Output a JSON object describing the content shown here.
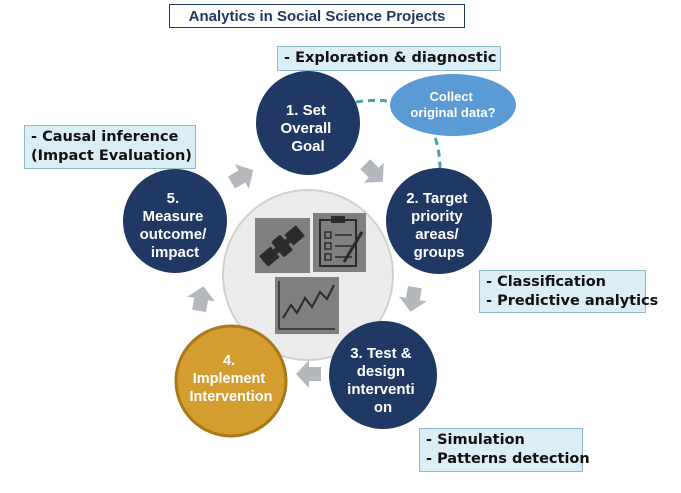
{
  "title": "Analytics in Social Science Projects",
  "steps": [
    {
      "lines": [
        "1. Set",
        "Overall",
        "Goal"
      ]
    },
    {
      "lines": [
        "2. Target",
        "priority",
        "areas/",
        "groups"
      ]
    },
    {
      "lines": [
        "3. Test &",
        "design",
        "interventi",
        "on"
      ]
    },
    {
      "lines": [
        "4.",
        "Implement",
        "Intervention"
      ]
    },
    {
      "lines": [
        "5.",
        "Measure",
        "outcome/",
        "impact"
      ]
    }
  ],
  "bubble": {
    "lines": [
      "Collect",
      "original data?"
    ]
  },
  "notes": {
    "exploration": [
      "- Exploration & diagnostic"
    ],
    "causal": [
      "- Causal inference",
      "(Impact Evaluation)"
    ],
    "classification": [
      "- Classification",
      "- Predictive analytics"
    ],
    "simulation": [
      "- Simulation",
      "- Patterns detection"
    ]
  },
  "colors": {
    "navy": "#1f3864",
    "gold": "#d39e2f",
    "bubble": "#5b9bd5",
    "arrow": "#b4b8bd",
    "note_fill": "#dbeef6",
    "dashed": "#4aa3a3"
  },
  "icons": [
    "satellite-icon",
    "clipboard-checklist-icon",
    "trend-chart-icon"
  ]
}
